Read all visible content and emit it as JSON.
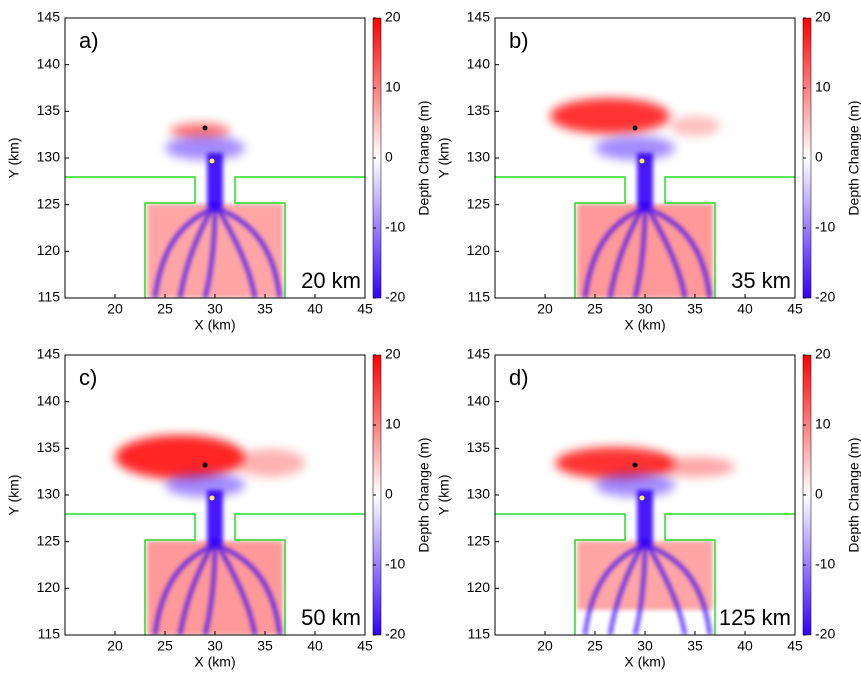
{
  "chart_data": [
    {
      "type": "heatmap",
      "panel_label": "a)",
      "annotation": "20 km",
      "xlabel": "X (km)",
      "ylabel": "Y (km)",
      "xlim": [
        15,
        45
      ],
      "ylim": [
        115,
        145
      ],
      "xticks": [
        20,
        25,
        30,
        35,
        40,
        45
      ],
      "yticks": [
        115,
        120,
        125,
        130,
        135,
        140,
        145
      ],
      "colorbar": {
        "label": "Depth Change (m)",
        "clim": [
          -20,
          20
        ],
        "ticks": [
          -20,
          -10,
          0,
          10,
          20
        ],
        "colors": [
          "#3300ff",
          "#ffffff",
          "#ff0000"
        ]
      }
    },
    {
      "type": "heatmap",
      "panel_label": "b)",
      "annotation": "35 km",
      "xlabel": "X (km)",
      "ylabel": "Y (km)",
      "xlim": [
        15,
        45
      ],
      "ylim": [
        115,
        145
      ],
      "xticks": [
        20,
        25,
        30,
        35,
        40,
        45
      ],
      "yticks": [
        115,
        120,
        125,
        130,
        135,
        140,
        145
      ],
      "colorbar": {
        "label": "Depth Change (m)",
        "clim": [
          -20,
          20
        ],
        "ticks": [
          -20,
          -10,
          0,
          10,
          20
        ],
        "colors": [
          "#3300ff",
          "#ffffff",
          "#ff0000"
        ]
      }
    },
    {
      "type": "heatmap",
      "panel_label": "c)",
      "annotation": "50 km",
      "xlabel": "X (km)",
      "ylabel": "Y (km)",
      "xlim": [
        15,
        45
      ],
      "ylim": [
        115,
        145
      ],
      "xticks": [
        20,
        25,
        30,
        35,
        40,
        45
      ],
      "yticks": [
        115,
        120,
        125,
        130,
        135,
        140,
        145
      ],
      "colorbar": {
        "label": "Depth Change (m)",
        "clim": [
          -20,
          20
        ],
        "ticks": [
          -20,
          -10,
          0,
          10,
          20
        ],
        "colors": [
          "#3300ff",
          "#ffffff",
          "#ff0000"
        ]
      }
    },
    {
      "type": "heatmap",
      "panel_label": "d)",
      "annotation": "125 km",
      "xlabel": "X (km)",
      "ylabel": "Y (km)",
      "xlim": [
        15,
        45
      ],
      "ylim": [
        115,
        145
      ],
      "xticks": [
        20,
        25,
        30,
        35,
        40,
        45
      ],
      "yticks": [
        115,
        120,
        125,
        130,
        135,
        140,
        145
      ],
      "colorbar": {
        "label": "Depth Change (m)",
        "clim": [
          -20,
          20
        ],
        "ticks": [
          -20,
          -10,
          0,
          10,
          20
        ],
        "colors": [
          "#3300ff",
          "#ffffff",
          "#ff0000"
        ]
      }
    }
  ]
}
